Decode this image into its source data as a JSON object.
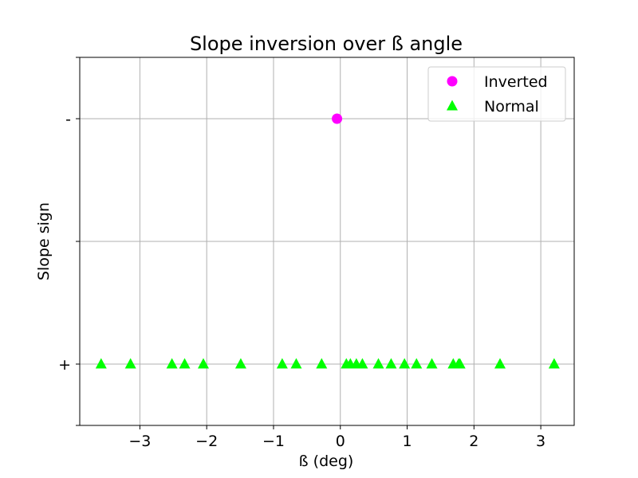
{
  "chart_data": {
    "type": "scatter",
    "title": "Slope inversion over ß angle",
    "xlabel": "ß (deg)",
    "ylabel": "Slope sign",
    "xlim": [
      -3.9,
      3.5
    ],
    "ylim": [
      -0.25,
      1.25
    ],
    "grid": true,
    "legend_position": "top-right",
    "x_ticks": [
      {
        "value": -3,
        "label": "−3"
      },
      {
        "value": -2,
        "label": "−2"
      },
      {
        "value": -1,
        "label": "−1"
      },
      {
        "value": 0,
        "label": "0"
      },
      {
        "value": 1,
        "label": "1"
      },
      {
        "value": 2,
        "label": "2"
      },
      {
        "value": 3,
        "label": "3"
      }
    ],
    "y_ticks": [
      {
        "value": 0,
        "label": "+"
      },
      {
        "value": 0.5,
        "label": ""
      },
      {
        "value": 1,
        "label": "-"
      }
    ],
    "series": [
      {
        "name": "Inverted",
        "marker": "circle",
        "color": "#ff00ff",
        "points": [
          {
            "x": -0.05,
            "y": 1
          }
        ]
      },
      {
        "name": "Normal",
        "marker": "triangle",
        "color": "#00ff00",
        "points": [
          {
            "x": -3.58,
            "y": 0
          },
          {
            "x": -3.14,
            "y": 0
          },
          {
            "x": -2.52,
            "y": 0
          },
          {
            "x": -2.33,
            "y": 0
          },
          {
            "x": -2.05,
            "y": 0
          },
          {
            "x": -1.49,
            "y": 0
          },
          {
            "x": -0.87,
            "y": 0
          },
          {
            "x": -0.66,
            "y": 0
          },
          {
            "x": -0.28,
            "y": 0
          },
          {
            "x": 0.09,
            "y": 0
          },
          {
            "x": 0.15,
            "y": 0
          },
          {
            "x": 0.24,
            "y": 0
          },
          {
            "x": 0.33,
            "y": 0
          },
          {
            "x": 0.57,
            "y": 0
          },
          {
            "x": 0.76,
            "y": 0
          },
          {
            "x": 0.96,
            "y": 0
          },
          {
            "x": 1.14,
            "y": 0
          },
          {
            "x": 1.37,
            "y": 0
          },
          {
            "x": 1.69,
            "y": 0
          },
          {
            "x": 1.77,
            "y": 0
          },
          {
            "x": 1.79,
            "y": 0
          },
          {
            "x": 2.39,
            "y": 0
          },
          {
            "x": 3.2,
            "y": 0
          }
        ]
      }
    ]
  }
}
